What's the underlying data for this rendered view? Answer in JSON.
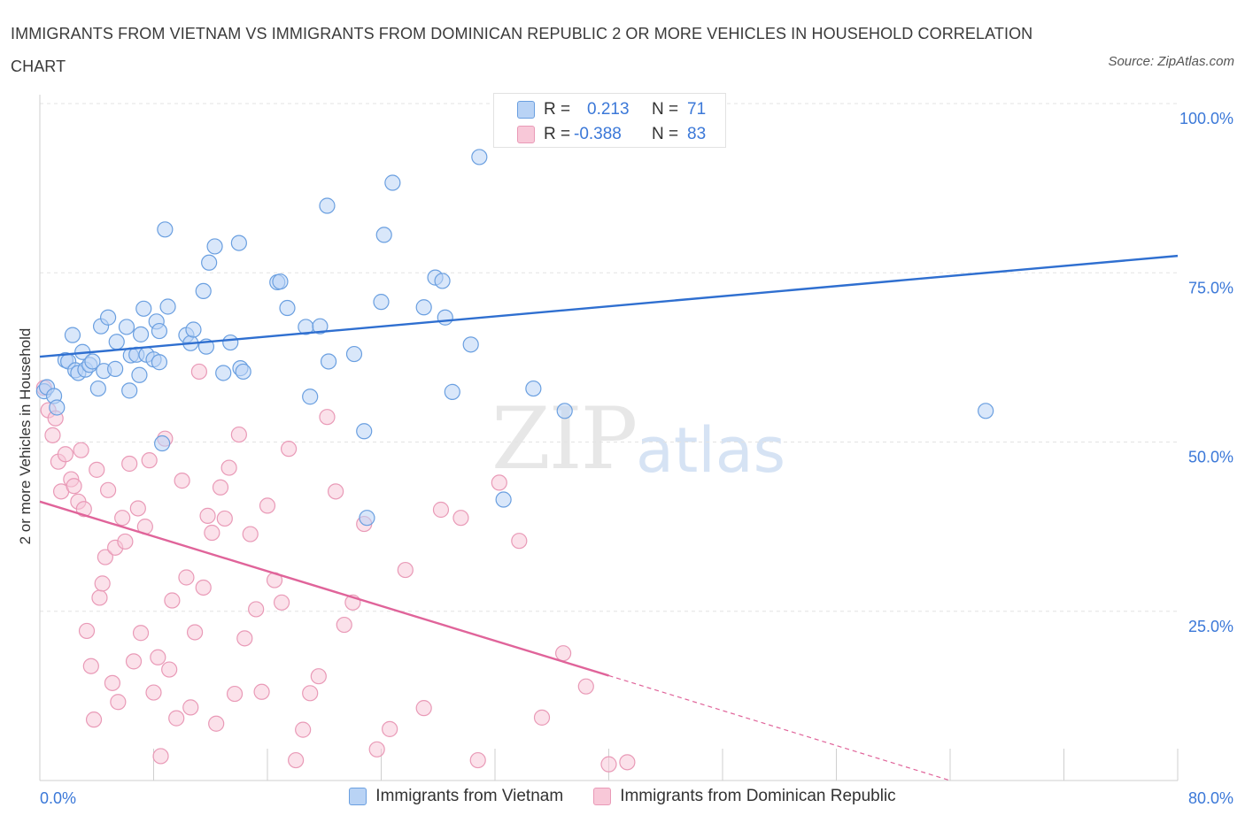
{
  "title": "IMMIGRANTS FROM VIETNAM VS IMMIGRANTS FROM DOMINICAN REPUBLIC 2 OR MORE VEHICLES IN HOUSEHOLD CORRELATION CHART",
  "source": "Source: ZipAtlas.com",
  "watermark": {
    "zip": "ZIP",
    "atlas": "atlas"
  },
  "stats": {
    "row1": {
      "r_label": "R =",
      "r_value": "0.213",
      "n_label": "N =",
      "n_value": "71"
    },
    "row2": {
      "r_label": "R =",
      "r_value": "-0.388",
      "n_label": "N =",
      "n_value": "83"
    }
  },
  "legend": {
    "vietnam": "Immigrants from Vietnam",
    "dominican": "Immigrants from Dominican Republic"
  },
  "colors": {
    "blue_fill": "#b9d3f5",
    "blue_stroke": "#6a9fe0",
    "blue_line": "#2f6fd0",
    "pink_fill": "#f8c8d8",
    "pink_stroke": "#e99ab7",
    "pink_line": "#e0649a",
    "tick_label": "#3b78d8"
  },
  "chart_data": {
    "type": "scatter",
    "xlabel": "",
    "ylabel": "2 or more Vehicles in Household",
    "xlim": [
      0,
      80
    ],
    "ylim": [
      0,
      100
    ],
    "x_tick_labels": [
      "0.0%",
      "80.0%"
    ],
    "y_ticks": [
      25,
      50,
      75,
      100
    ],
    "y_tick_labels": [
      "25.0%",
      "50.0%",
      "75.0%",
      "100.0%"
    ],
    "grid": true,
    "series": [
      {
        "name": "Immigrants from Vietnam",
        "color": "#6a9fe0",
        "trend": {
          "x": [
            0,
            80
          ],
          "y": [
            62.6,
            77.5
          ]
        },
        "x": [
          0.3,
          0.5,
          1.0,
          1.2,
          1.8,
          2.0,
          2.3,
          2.5,
          2.7,
          3.0,
          3.2,
          3.5,
          3.7,
          4.1,
          4.3,
          4.5,
          4.8,
          5.3,
          5.4,
          6.1,
          6.3,
          6.4,
          6.8,
          7.0,
          7.1,
          7.3,
          7.5,
          8.0,
          8.2,
          8.4,
          8.6,
          8.8,
          9.0,
          10.3,
          10.6,
          10.8,
          11.5,
          11.7,
          11.9,
          12.3,
          12.9,
          13.4,
          14.0,
          14.1,
          14.3,
          16.7,
          16.9,
          17.4,
          18.7,
          19.0,
          19.7,
          20.2,
          20.3,
          22.1,
          22.8,
          24.0,
          24.2,
          24.8,
          27.0,
          23.0,
          27.8,
          28.3,
          28.5,
          29.0,
          30.3,
          30.9,
          32.6,
          34.7,
          36.9,
          66.5,
          8.4
        ],
        "y": [
          57.5,
          58.1,
          56.8,
          55.1,
          62.1,
          61.9,
          65.8,
          60.6,
          60.2,
          63.3,
          60.7,
          61.4,
          61.9,
          57.9,
          67.1,
          60.5,
          68.4,
          60.8,
          64.8,
          67.0,
          57.6,
          62.8,
          62.9,
          59.9,
          65.9,
          69.7,
          62.9,
          62.2,
          67.8,
          66.4,
          49.8,
          81.4,
          70.0,
          65.8,
          64.6,
          66.6,
          72.3,
          64.1,
          76.5,
          78.9,
          60.2,
          64.7,
          79.4,
          60.9,
          60.4,
          73.6,
          73.7,
          69.8,
          67.0,
          56.7,
          67.1,
          84.9,
          61.9,
          63.0,
          51.6,
          70.7,
          80.6,
          88.3,
          69.9,
          38.8,
          74.3,
          73.8,
          68.4,
          57.4,
          64.4,
          92.1,
          41.5,
          57.9,
          54.6,
          54.6,
          61.8
        ]
      },
      {
        "name": "Immigrants from Dominican Republic",
        "color": "#e99ab7",
        "trend": {
          "x": [
            0,
            40,
            64
          ],
          "y": [
            41.2,
            15.5,
            0
          ]
        },
        "x": [
          0.3,
          0.6,
          0.9,
          1.1,
          1.3,
          1.5,
          1.8,
          2.2,
          2.4,
          2.7,
          2.9,
          3.1,
          3.3,
          3.6,
          3.8,
          4.0,
          4.2,
          4.4,
          4.6,
          4.8,
          5.1,
          5.3,
          5.5,
          5.8,
          6.0,
          6.3,
          6.6,
          6.9,
          7.1,
          7.4,
          7.7,
          8.0,
          8.3,
          8.5,
          8.8,
          9.1,
          9.3,
          9.6,
          10.0,
          10.3,
          10.6,
          10.9,
          11.2,
          11.5,
          11.8,
          12.1,
          12.4,
          12.7,
          13.0,
          13.3,
          13.7,
          14.0,
          14.4,
          14.8,
          15.2,
          15.6,
          16.0,
          16.5,
          17.0,
          17.5,
          18.0,
          18.5,
          19.0,
          19.6,
          20.2,
          20.8,
          21.4,
          22.0,
          22.8,
          23.7,
          24.6,
          25.7,
          27.0,
          28.2,
          29.6,
          30.8,
          32.3,
          33.7,
          35.3,
          36.8,
          38.4,
          40.0,
          41.3
        ],
        "y": [
          58.0,
          54.7,
          51.0,
          53.5,
          47.1,
          42.7,
          48.2,
          44.5,
          43.5,
          41.2,
          48.8,
          40.1,
          22.1,
          16.9,
          9.0,
          45.9,
          27.0,
          29.1,
          33.0,
          42.9,
          14.4,
          34.4,
          11.6,
          38.8,
          35.3,
          46.8,
          17.6,
          40.2,
          21.8,
          37.5,
          47.3,
          13.0,
          18.2,
          3.6,
          50.5,
          16.4,
          26.6,
          9.2,
          44.3,
          30.0,
          10.8,
          21.9,
          60.4,
          28.5,
          39.1,
          36.6,
          8.4,
          43.3,
          38.7,
          46.2,
          12.8,
          51.1,
          21.0,
          36.4,
          25.3,
          13.1,
          40.6,
          29.6,
          26.3,
          49.0,
          3.0,
          7.5,
          12.9,
          15.4,
          53.7,
          42.7,
          23.0,
          26.3,
          37.9,
          4.6,
          7.6,
          31.1,
          10.7,
          40.0,
          38.8,
          3.0,
          44.0,
          35.4,
          9.3,
          18.8,
          13.9,
          2.4,
          2.7
        ]
      }
    ]
  }
}
